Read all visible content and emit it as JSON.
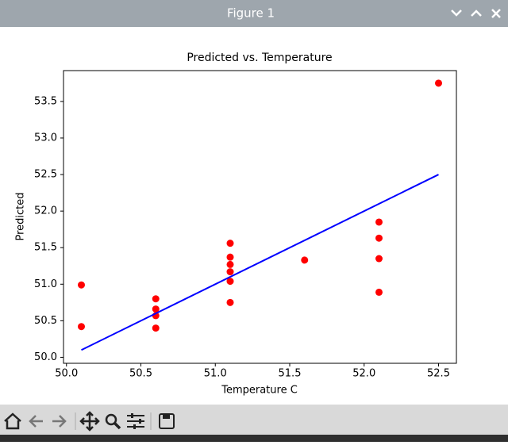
{
  "window": {
    "title": "Figure 1"
  },
  "chart_data": {
    "type": "scatter",
    "title": "Predicted vs. Temperature",
    "x_label": "Temperature C",
    "y_label": "Predicted",
    "xlim": [
      49.98,
      52.62
    ],
    "xticks": [
      {
        "value": 50,
        "label": "50.0"
      },
      50.5,
      {
        "value": 51,
        "label": "51.0"
      },
      51.5,
      {
        "value": 52,
        "label": "52.0"
      },
      52.5
    ],
    "ylim": [
      49.918,
      53.922
    ],
    "yticks": [
      {
        "value": 50,
        "label": "50.0"
      },
      50.5,
      {
        "value": 51,
        "label": "51.0"
      },
      51.5,
      {
        "value": 52,
        "label": "52.0"
      },
      52.5,
      {
        "value": 53,
        "label": "53.0"
      },
      53.5
    ],
    "grid": false,
    "series": [
      {
        "type": "scatter",
        "color": "#ff0000",
        "x": [
          50.1,
          50.1,
          50.6,
          50.6,
          50.6,
          50.6,
          51.1,
          51.1,
          51.1,
          51.1,
          51.1,
          51.1,
          51.6,
          52.1,
          52.1,
          52.1,
          52.1,
          52.5
        ],
        "values": [
          50.99,
          50.42,
          50.8,
          50.66,
          50.57,
          50.4,
          51.56,
          51.37,
          51.27,
          51.17,
          51.04,
          50.75,
          51.33,
          51.85,
          51.63,
          51.35,
          50.89,
          53.75
        ]
      },
      {
        "type": "line",
        "color": "#0000ff",
        "x": [
          50.1,
          52.5
        ],
        "values": [
          50.1,
          52.5
        ]
      }
    ]
  }
}
